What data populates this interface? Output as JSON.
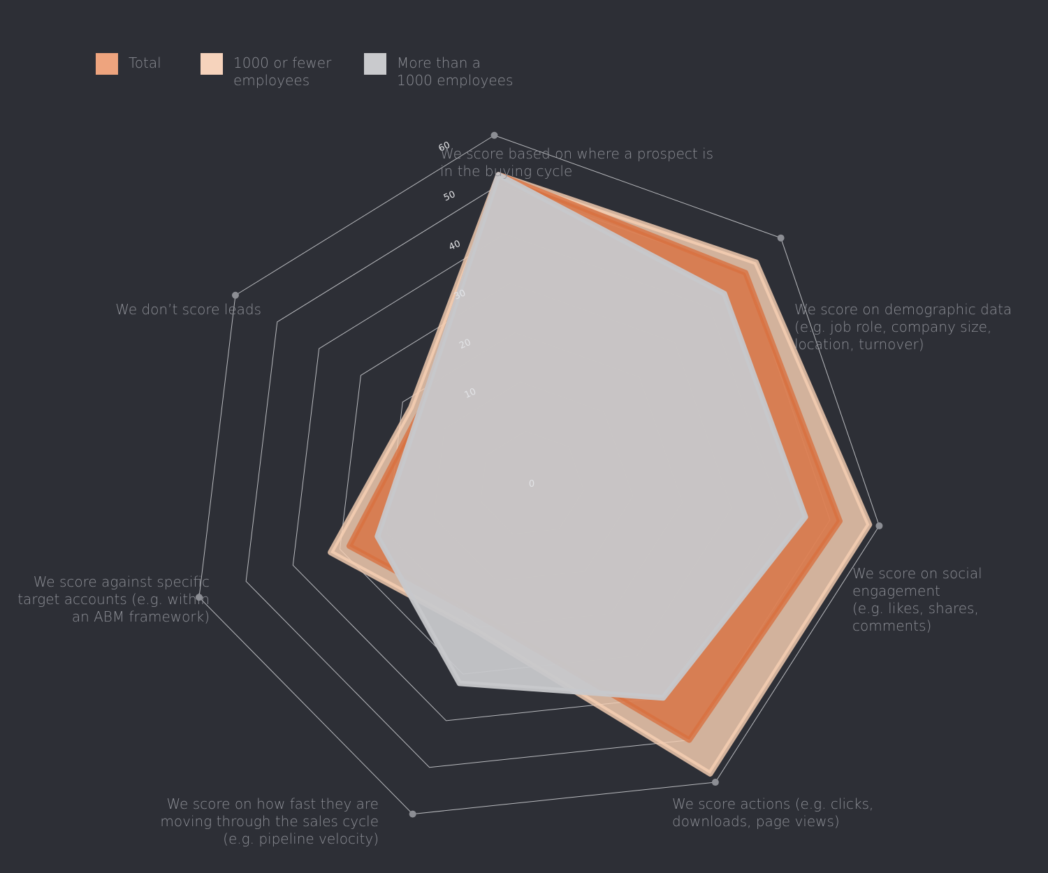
{
  "chart_data": {
    "type": "radar",
    "title": "",
    "axes": [
      [
        "We score based on where a prospect is",
        "in the buying cycle"
      ],
      [
        "We score on demographic data",
        "(e.g. job role, company size,",
        "location, turnover)"
      ],
      [
        "We score on social",
        "engagement",
        "(e.g. likes, shares,",
        "comments)"
      ],
      [
        "We score actions (e.g. clicks,",
        "downloads, page views)"
      ],
      [
        "We score on how fast they are",
        "moving through the sales cycle",
        "(e.g. pipeline velocity)"
      ],
      [
        "We score against specific",
        "target accounts (e.g. within",
        "an ABM framework)"
      ],
      [
        "We don’t score leads"
      ]
    ],
    "rlim": [
      0,
      60
    ],
    "ticks": [
      0,
      10,
      20,
      30,
      40,
      50,
      60
    ],
    "tick_labels": [
      "0",
      "10",
      "20",
      "30",
      "40",
      "50",
      "60"
    ],
    "legend_position": "top-left",
    "series": [
      {
        "name": "1000 or fewer employees",
        "color": "#f6cfb3",
        "opacity": 0.82,
        "values": [
          52,
          53,
          58,
          58,
          21,
          32,
          18
        ]
      },
      {
        "name": "Total",
        "color": "#d9703f",
        "opacity": 0.78,
        "values": [
          52,
          50,
          52,
          50,
          18,
          28,
          16
        ]
      },
      {
        "name": "More than a 1000 employees",
        "color": "#c7c8cb",
        "opacity": 0.95,
        "values": [
          52,
          44,
          45,
          40,
          32,
          22,
          16
        ]
      }
    ],
    "legend": [
      {
        "lines": [
          "Total"
        ],
        "color": "#eea47e"
      },
      {
        "lines": [
          "1000 or fewer",
          "employees"
        ],
        "color": "#f6d3bc"
      },
      {
        "lines": [
          "More than a",
          "1000 employees"
        ],
        "color": "#c9cacd"
      }
    ]
  }
}
